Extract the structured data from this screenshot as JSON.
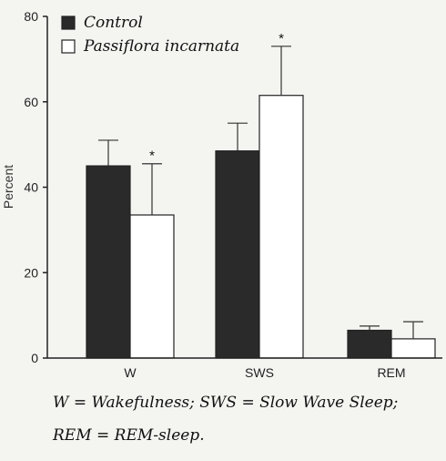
{
  "chart_data": {
    "type": "bar",
    "ylabel": "Percent",
    "ylim": [
      0,
      80
    ],
    "yticks": [
      0,
      20,
      40,
      60,
      80
    ],
    "categories": [
      "W",
      "SWS",
      "REM"
    ],
    "series": [
      {
        "name": "Control",
        "color": "#2a2a2a",
        "values": [
          45,
          48.5,
          6.5
        ],
        "errors": [
          6,
          6.5,
          1
        ]
      },
      {
        "name": "Passiflora incarnata",
        "color": "#ffffff",
        "values": [
          33.5,
          61.5,
          4.5
        ],
        "errors": [
          12,
          11.5,
          4
        ]
      }
    ],
    "significance": [
      {
        "category": "W",
        "series": "Passiflora incarnata",
        "mark": "*"
      },
      {
        "category": "SWS",
        "series": "Passiflora incarnata",
        "mark": "*"
      }
    ],
    "legend": {
      "position": "top-left"
    }
  },
  "caption": {
    "line1": "W = Wakefulness; SWS = Slow Wave Sleep;",
    "line2": "REM = REM-sleep."
  }
}
